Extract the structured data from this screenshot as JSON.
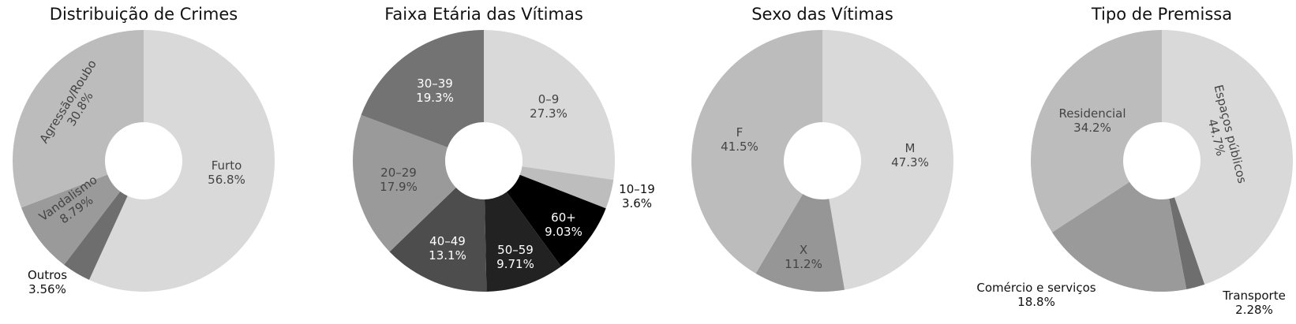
{
  "chart_data": [
    {
      "type": "pie",
      "title": "Distribuição de Crimes",
      "hole": true,
      "slices": [
        {
          "label": "Furto",
          "value": 56.8,
          "text": "56.8%",
          "color": "#d9d9d9",
          "text_color": "#444444"
        },
        {
          "label": "Outros",
          "value": 3.56,
          "text": "3.56%",
          "color": "#6e6e6e",
          "text_color": "#111111"
        },
        {
          "label": "Vandalismo",
          "value": 8.79,
          "text": "8.79%",
          "color": "#9a9a9a",
          "text_color": "#444444"
        },
        {
          "label": "Agressão/Roubo",
          "value": 30.8,
          "text": "30.8%",
          "color": "#bcbcbc",
          "text_color": "#444444"
        }
      ]
    },
    {
      "type": "pie",
      "title": "Faixa Etária das Vítimas",
      "hole": true,
      "slices": [
        {
          "label": "0–9",
          "value": 27.3,
          "text": "27.3%",
          "color": "#d9d9d9",
          "text_color": "#444444"
        },
        {
          "label": "10–19",
          "value": 3.6,
          "text": "3.6%",
          "color": "#bdbdbd",
          "text_color": "#111111"
        },
        {
          "label": "60+",
          "value": 9.03,
          "text": "9.03%",
          "color": "#000000",
          "text_color": "#ffffff"
        },
        {
          "label": "50–59",
          "value": 9.71,
          "text": "9.71%",
          "color": "#222222",
          "text_color": "#ffffff"
        },
        {
          "label": "40–49",
          "value": 13.1,
          "text": "13.1%",
          "color": "#4d4d4d",
          "text_color": "#ffffff"
        },
        {
          "label": "20–29",
          "value": 17.9,
          "text": "17.9%",
          "color": "#9a9a9a",
          "text_color": "#444444"
        },
        {
          "label": "30–39",
          "value": 19.3,
          "text": "19.3%",
          "color": "#737373",
          "text_color": "#ffffff"
        }
      ]
    },
    {
      "type": "pie",
      "title": "Sexo das Vítimas",
      "hole": true,
      "slices": [
        {
          "label": "M",
          "value": 47.3,
          "text": "47.3%",
          "color": "#d9d9d9",
          "text_color": "#444444"
        },
        {
          "label": "X",
          "value": 11.2,
          "text": "11.2%",
          "color": "#969696",
          "text_color": "#444444"
        },
        {
          "label": "F",
          "value": 41.5,
          "text": "41.5%",
          "color": "#bcbcbc",
          "text_color": "#444444"
        }
      ]
    },
    {
      "type": "pie",
      "title": "Tipo de Premissa",
      "hole": true,
      "slices": [
        {
          "label": "Espaços públicos",
          "value": 44.7,
          "text": "44.7%",
          "color": "#d9d9d9",
          "text_color": "#444444"
        },
        {
          "label": "Transporte",
          "value": 2.28,
          "text": "2.28%",
          "color": "#6e6e6e",
          "text_color": "#111111"
        },
        {
          "label": "Comércio e serviços",
          "value": 18.8,
          "text": "18.8%",
          "color": "#9a9a9a",
          "text_color": "#111111"
        },
        {
          "label": "Residencial",
          "value": 34.2,
          "text": "34.2%",
          "color": "#bcbcbc",
          "text_color": "#444444"
        }
      ]
    }
  ]
}
